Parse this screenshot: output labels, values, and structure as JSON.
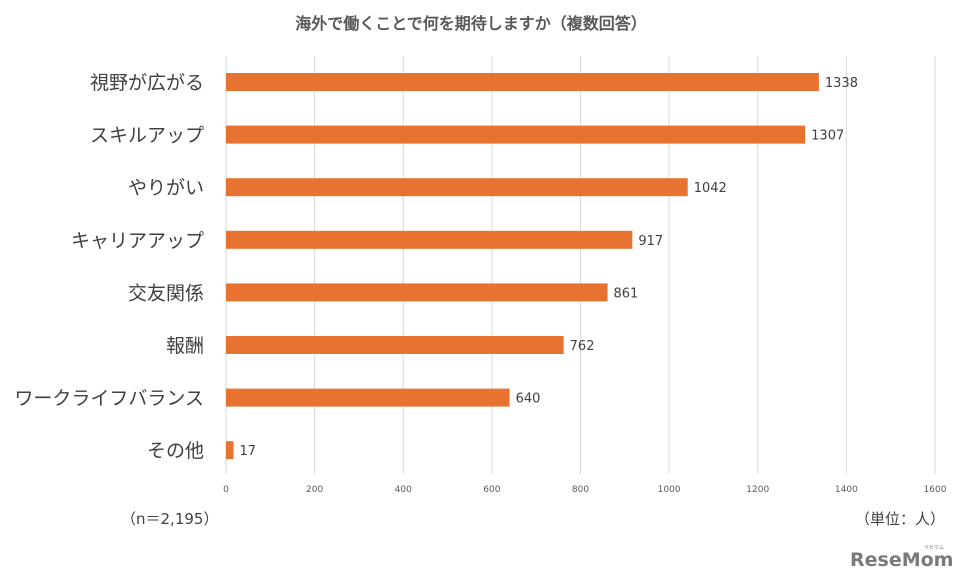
{
  "chart_data": {
    "type": "bar",
    "orientation": "horizontal",
    "title": "海外で働くことで何を期待しますか（複数回答）",
    "categories": [
      "視野が広がる",
      "スキルアップ",
      "やりがい",
      "キャリアアップ",
      "交友関係",
      "報酬",
      "ワークライフバランス",
      "その他"
    ],
    "values": [
      1338,
      1307,
      1042,
      917,
      861,
      762,
      640,
      17
    ],
    "bar_color": "#E8722F",
    "xlim": [
      0,
      1600
    ],
    "xticks": [
      "0",
      "200",
      "400",
      "600",
      "800",
      "1000",
      "1200",
      "1400",
      "1600"
    ],
    "grid": true,
    "legend": "none"
  },
  "notes": {
    "sample": "（n＝2,195）",
    "unit": "（単位：人）"
  },
  "logo": {
    "text": "ReseMom",
    "kana": "リセマム"
  }
}
